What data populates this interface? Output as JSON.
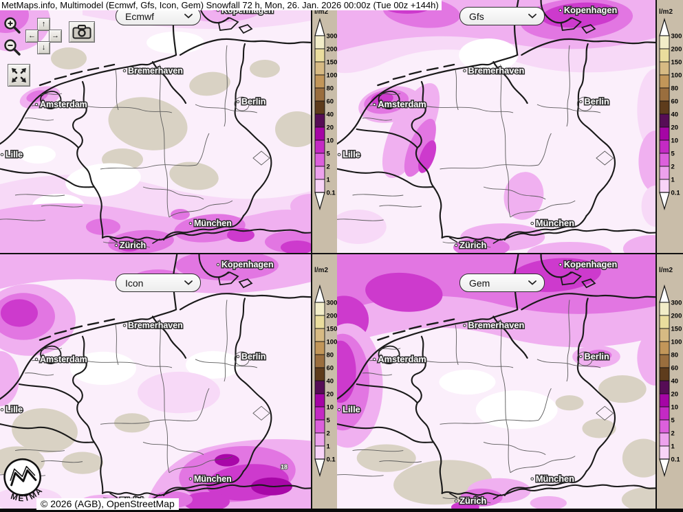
{
  "title": "MetMaps.info, Multimodel (Ecmwf, Gfs, Icon, Gem) Snowfall 72 h, Mon, 26. Jan. 2026 00:00z (Tue 00z +144h)",
  "copyright": "© 2026 (AGB), OpenStreetMap",
  "logo_text": "METMAPS",
  "panels": [
    {
      "id": "ecmwf",
      "selected_model": "Ecmwf"
    },
    {
      "id": "gfs",
      "selected_model": "Gfs"
    },
    {
      "id": "icon",
      "selected_model": "Icon"
    },
    {
      "id": "gem",
      "selected_model": "Gem"
    }
  ],
  "cities": [
    "Kopenhagen",
    "Bremerhaven",
    "Berlin",
    "Amsterdam",
    "Lille",
    "München",
    "Zürich"
  ],
  "legend": {
    "unit": "l/m2",
    "ticks": [
      "300",
      "200",
      "150",
      "100",
      "80",
      "60",
      "40",
      "20",
      "10",
      "5",
      "2",
      "1",
      "0.1"
    ],
    "cell_colors": [
      "#f2edc8",
      "#eadd9d",
      "#d7ba83",
      "#c29659",
      "#9a6e3e",
      "#5e3c1c",
      "#560d56",
      "#a505a5",
      "#c42ac4",
      "#dc60dc",
      "#eda2ed",
      "#f8d4f8"
    ],
    "arrow_color": "#ffffff",
    "column_bg": "#c9bda9"
  },
  "map_colors": {
    "l0": "#fbeffb",
    "w": "#ffffff",
    "l1": "#f7d9f7",
    "l2": "#f0b0f0",
    "l3": "#e276e2",
    "l4": "#cd3acd",
    "l5": "#a807a8",
    "land": "#d9d2c4",
    "border_country": "#1a1a1a",
    "border_state": "#555555",
    "city_text": "#ffffff",
    "city_outline": "#2e2e2e"
  },
  "map_annotations": {
    "icon_value": "18"
  },
  "controls": {
    "zoom_in": "+",
    "zoom_out": "−",
    "pan_up": "↑",
    "pan_left": "←",
    "pan_right": "→",
    "pan_down": "↓"
  }
}
